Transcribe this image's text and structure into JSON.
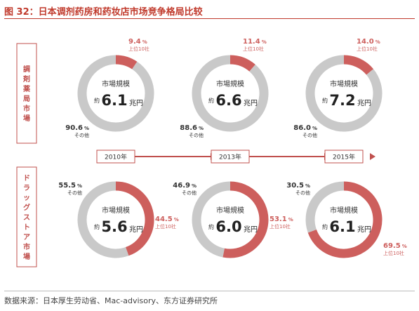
{
  "title": "图 32：日本调剂药房和药妆店市场竞争格局比较",
  "source": "数据来源：日本厚生劳动省、Mac-advisory、东方证券研究所",
  "colors": {
    "top10": "#cd5f5d",
    "others": "#c9c9c9",
    "accent": "#c0504d"
  },
  "timeline": [
    "2010年",
    "2013年",
    "2015年"
  ],
  "chart_data": {
    "type": "pie",
    "variant": "donut",
    "center_label": "市場規模",
    "center_prefix": "約",
    "unit": "兆円",
    "top_label": "上位10社",
    "other_label": "その他",
    "percent_sign": "%",
    "years": [
      "2010年",
      "2013年",
      "2015年"
    ],
    "rows": [
      {
        "label": "調剤薬局市場",
        "items": [
          {
            "year": "2010年",
            "market_size": "6.1",
            "top10": "9.4",
            "others": "90.6"
          },
          {
            "year": "2013年",
            "market_size": "6.6",
            "top10": "11.4",
            "others": "88.6"
          },
          {
            "year": "2015年",
            "market_size": "7.2",
            "top10": "14.0",
            "others": "86.0"
          }
        ]
      },
      {
        "label": "ドラッグストア市場",
        "items": [
          {
            "year": "2010年",
            "market_size": "5.6",
            "top10": "44.5",
            "others": "55.5"
          },
          {
            "year": "2013年",
            "market_size": "6.0",
            "top10": "53.1",
            "others": "46.9"
          },
          {
            "year": "2015年",
            "market_size": "6.1",
            "top10": "69.5",
            "others": "30.5"
          }
        ]
      }
    ]
  }
}
